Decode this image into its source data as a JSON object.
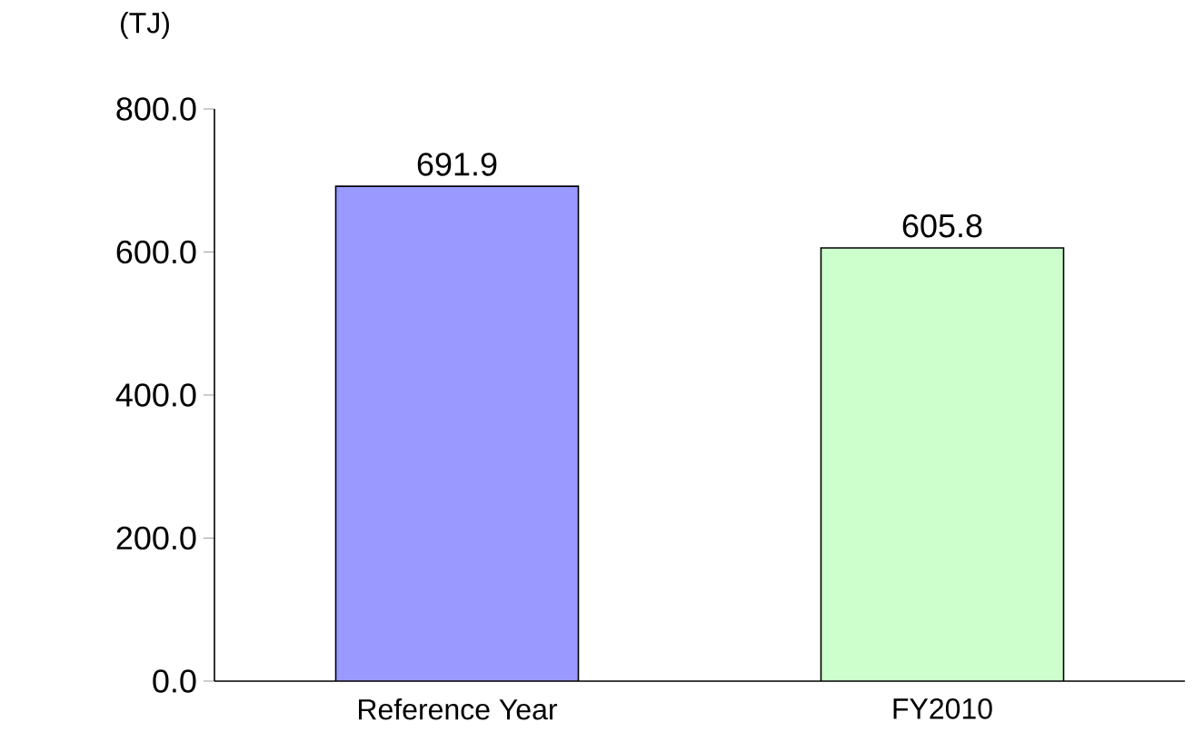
{
  "chart_data": {
    "type": "bar",
    "ylabel": "(TJ)",
    "categories": [
      "Reference Year",
      "FY2010"
    ],
    "values": [
      691.9,
      605.8
    ],
    "colors": [
      "#9999ff",
      "#ccffcc"
    ],
    "ylim": [
      0,
      800
    ],
    "yticks": [
      {
        "value": 0,
        "label": "0.0"
      },
      {
        "value": 200,
        "label": "200.0"
      },
      {
        "value": 400,
        "label": "400.0"
      },
      {
        "value": 600,
        "label": "600.0"
      },
      {
        "value": 800,
        "label": "800.0"
      }
    ],
    "data_labels": true,
    "grid": false
  }
}
